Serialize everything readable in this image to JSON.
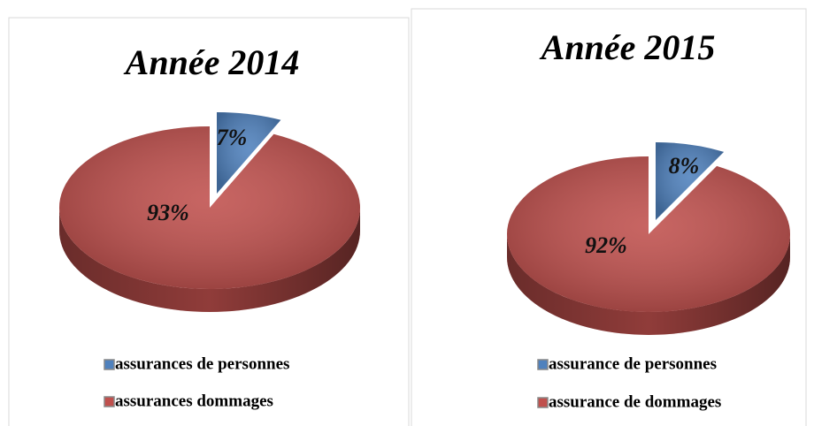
{
  "chart_data": [
    {
      "type": "pie",
      "title": "Année 2014",
      "series": [
        {
          "name": "assurances de personnes",
          "color": "#4f81bd"
        },
        {
          "name": "assurances dommages",
          "color": "#c0504d"
        }
      ],
      "values": [
        7,
        93
      ],
      "value_labels": [
        "7%",
        "93%"
      ]
    },
    {
      "type": "pie",
      "title": "Année 2015",
      "series": [
        {
          "name": "assurance de personnes",
          "color": "#4f81bd"
        },
        {
          "name": "assurance de dommages",
          "color": "#c0504d"
        }
      ],
      "values": [
        8,
        92
      ],
      "value_labels": [
        "8%",
        "92%"
      ]
    }
  ]
}
